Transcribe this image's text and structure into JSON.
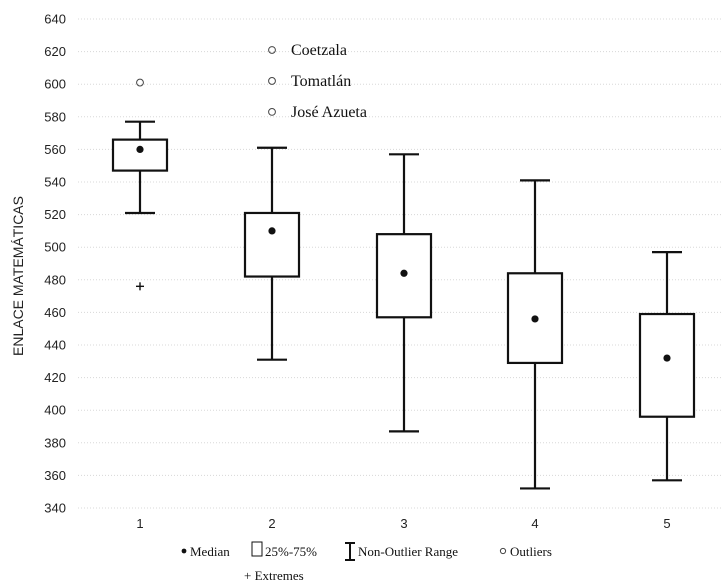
{
  "chart_data": {
    "type": "box",
    "title": "",
    "xlabel": "",
    "ylabel": "ENLACE MATEMÁTICAS",
    "ylim": [
      340,
      640
    ],
    "yticks": [
      340,
      360,
      380,
      400,
      420,
      440,
      460,
      480,
      500,
      520,
      540,
      560,
      580,
      600,
      620,
      640
    ],
    "grid": true,
    "categories": [
      "1",
      "2",
      "3",
      "4",
      "5"
    ],
    "boxes": [
      {
        "category": "1",
        "median": 560,
        "q1": 547,
        "q3": 566,
        "whisker_low": 521,
        "whisker_high": 577
      },
      {
        "category": "2",
        "median": 510,
        "q1": 482,
        "q3": 521,
        "whisker_low": 431,
        "whisker_high": 561
      },
      {
        "category": "3",
        "median": 484,
        "q1": 457,
        "q3": 508,
        "whisker_low": 387,
        "whisker_high": 557
      },
      {
        "category": "4",
        "median": 456,
        "q1": 429,
        "q3": 484,
        "whisker_low": 352,
        "whisker_high": 541
      },
      {
        "category": "5",
        "median": 432,
        "q1": 396,
        "q3": 459,
        "whisker_low": 357,
        "whisker_high": 497
      }
    ],
    "outliers": [
      {
        "category": "1",
        "value": 601
      },
      {
        "category": "2",
        "value": 621,
        "label": "Coetzala"
      },
      {
        "category": "2",
        "value": 602,
        "label": "Tomatlán"
      },
      {
        "category": "2",
        "value": 583,
        "label": "José Azueta"
      }
    ],
    "extremes": [
      {
        "category": "1",
        "value": 476
      }
    ],
    "legend": {
      "position": "bottom",
      "items": [
        {
          "symbol": "median",
          "label": "Median"
        },
        {
          "symbol": "box",
          "label": "25%-75%"
        },
        {
          "symbol": "whisker",
          "label": "Non-Outlier Range"
        },
        {
          "symbol": "outlier",
          "label": "Outliers"
        },
        {
          "symbol": "extreme",
          "label": "+ Extremes"
        }
      ]
    }
  }
}
